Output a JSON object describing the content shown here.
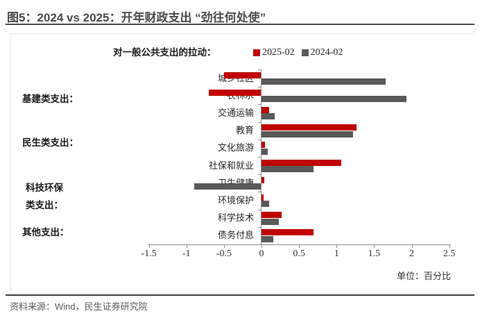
{
  "figure": {
    "title": "图5：2024 vs 2025：开年财政支出 “劲往何处使”",
    "unit_label": "单位：百分比",
    "source": "资料来源：Wind，民生证券研究院"
  },
  "legend": {
    "title": "对一般公共支出的拉动：",
    "items": [
      {
        "label": "2025-02",
        "color": "#c00000"
      },
      {
        "label": "2024-02",
        "color": "#595959"
      }
    ]
  },
  "groups": [
    {
      "label": "基建类支出："
    },
    {
      "label": "民生类支出："
    },
    {
      "label": "科技环保",
      "label2": "类支出："
    },
    {
      "label": "其他支出："
    }
  ],
  "chart_data": {
    "type": "bar",
    "orientation": "horizontal",
    "title": "对一般公共支出的拉动",
    "categories": [
      "城乡社区",
      "农林水",
      "交通运输",
      "教育",
      "文化旅游",
      "社保和就业",
      "卫生健康",
      "环境保护",
      "科学技术",
      "债务付息"
    ],
    "series": [
      {
        "name": "2025-02",
        "color": "#c00000",
        "values": [
          -0.5,
          -0.7,
          0.1,
          1.27,
          0.05,
          1.06,
          0.04,
          0.03,
          0.27,
          0.69
        ]
      },
      {
        "name": "2024-02",
        "color": "#595959",
        "values": [
          1.65,
          1.93,
          0.18,
          1.22,
          0.08,
          0.69,
          -0.9,
          0.1,
          0.23,
          0.16
        ]
      }
    ],
    "category_groups": [
      {
        "label": "基建类支出",
        "members": [
          "城乡社区",
          "农林水",
          "交通运输"
        ]
      },
      {
        "label": "民生类支出",
        "members": [
          "教育",
          "文化旅游",
          "社保和就业"
        ]
      },
      {
        "label": "科技环保类支出",
        "members": [
          "卫生健康",
          "环境保护",
          "科学技术"
        ]
      },
      {
        "label": "其他支出",
        "members": [
          "债务付息"
        ]
      }
    ],
    "xlabel": "单位：百分比",
    "xlim": [
      -1.5,
      2.5
    ],
    "xticks": [
      "-1.5",
      "-1",
      "-0.5",
      "0",
      "0.5",
      "1",
      "1.5",
      "2",
      "2.5"
    ],
    "grid": false,
    "legend_position": "top"
  }
}
